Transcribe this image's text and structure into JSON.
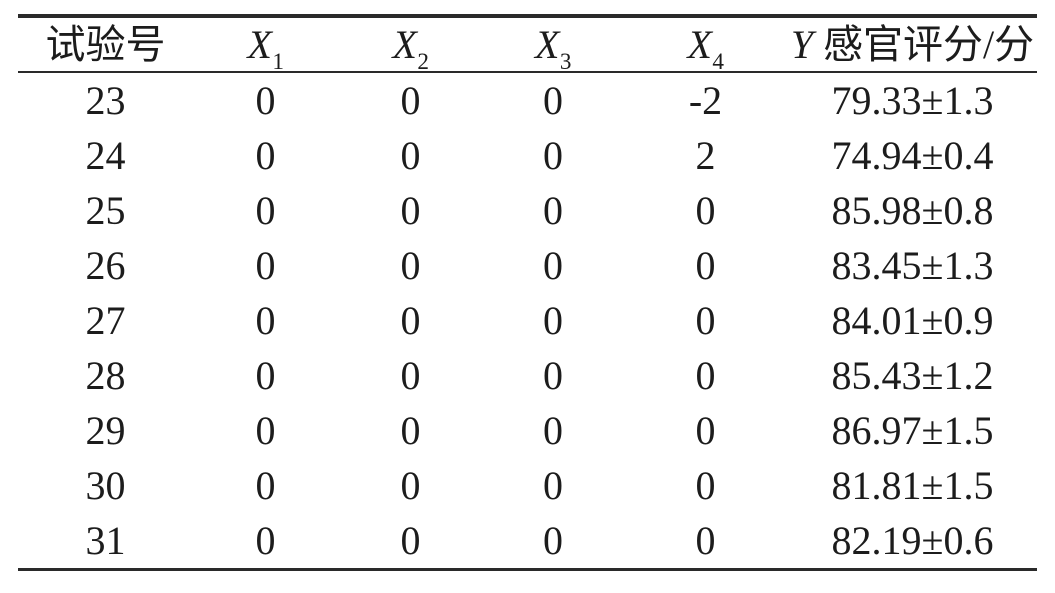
{
  "figure": {
    "background_color": "#ffffff",
    "text_color": "#1c1c1c",
    "rule_color": "#2a2a2a"
  },
  "table": {
    "columns": [
      {
        "italic": "",
        "sub": "",
        "text": "试验号"
      },
      {
        "italic": "X",
        "sub": "1",
        "text": ""
      },
      {
        "italic": "X",
        "sub": "2",
        "text": ""
      },
      {
        "italic": "X",
        "sub": "3",
        "text": ""
      },
      {
        "italic": "X",
        "sub": "4",
        "text": ""
      },
      {
        "italic": "Y",
        "sub": "",
        "text": " 感官评分/分"
      }
    ],
    "rows": [
      [
        "23",
        "0",
        "0",
        "0",
        "-2",
        "79.33±1.3"
      ],
      [
        "24",
        "0",
        "0",
        "0",
        "2",
        "74.94±0.4"
      ],
      [
        "25",
        "0",
        "0",
        "0",
        "0",
        "85.98±0.8"
      ],
      [
        "26",
        "0",
        "0",
        "0",
        "0",
        "83.45±1.3"
      ],
      [
        "27",
        "0",
        "0",
        "0",
        "0",
        "84.01±0.9"
      ],
      [
        "28",
        "0",
        "0",
        "0",
        "0",
        "85.43±1.2"
      ],
      [
        "29",
        "0",
        "0",
        "0",
        "0",
        "86.97±1.5"
      ],
      [
        "30",
        "0",
        "0",
        "0",
        "0",
        "81.81±1.5"
      ],
      [
        "31",
        "0",
        "0",
        "0",
        "0",
        "82.19±0.6"
      ]
    ]
  },
  "chart_data": {
    "type": "table",
    "title": "",
    "columns": [
      "试验号",
      "X1",
      "X2",
      "X3",
      "X4",
      "Y 感官评分/分"
    ],
    "rows": [
      [
        "23",
        "0",
        "0",
        "0",
        "-2",
        "79.33±1.3"
      ],
      [
        "24",
        "0",
        "0",
        "0",
        "2",
        "74.94±0.4"
      ],
      [
        "25",
        "0",
        "0",
        "0",
        "0",
        "85.98±0.8"
      ],
      [
        "26",
        "0",
        "0",
        "0",
        "0",
        "83.45±1.3"
      ],
      [
        "27",
        "0",
        "0",
        "0",
        "0",
        "84.01±0.9"
      ],
      [
        "28",
        "0",
        "0",
        "0",
        "0",
        "85.43±1.2"
      ],
      [
        "29",
        "0",
        "0",
        "0",
        "0",
        "86.97±1.5"
      ],
      [
        "30",
        "0",
        "0",
        "0",
        "0",
        "81.81±1.5"
      ],
      [
        "31",
        "0",
        "0",
        "0",
        "0",
        "82.19±0.6"
      ]
    ]
  }
}
